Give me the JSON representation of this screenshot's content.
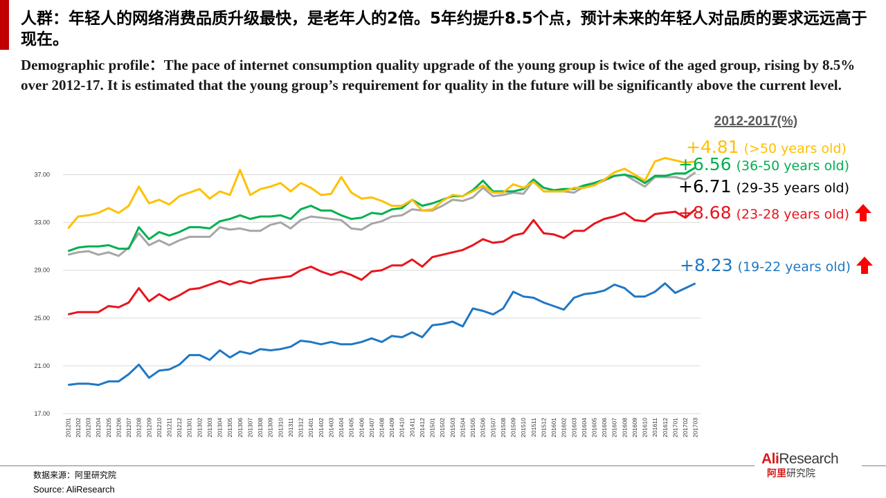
{
  "header": {
    "title_cn": "人群：年轻人的网络消费品质升级最快，是老年人的2倍。5年约提升8.5个点，预计未来的年轻人对品质的要求远远高于现在。",
    "subtitle_en": "Demographic profile：The pace of internet consumption quality upgrade of the young group is twice of the aged group, rising by 8.5% over 2012-17. It is estimated that the young group’s requirement for quality in the future will be significantly above the current level."
  },
  "footer": {
    "source_cn": "数据来源：阿里研究院",
    "source_en": "Source: AliResearch",
    "logo_en_part1": "Ali",
    "logo_en_part2": "Research",
    "logo_cn_part1": "阿里",
    "logo_cn_part2": "研究院"
  },
  "colors": {
    "accent": "#c00000",
    "grid": "#d9d9d9",
    "arrow": "#ff0000"
  },
  "chart_data": {
    "type": "line",
    "title": "",
    "xlabel": "",
    "ylabel": "",
    "ylim": [
      17,
      39
    ],
    "yticks": [
      "17.00",
      "21.00",
      "25.00",
      "29.00",
      "33.00",
      "37.00"
    ],
    "grid": true,
    "period_label": "2012-2017(%)",
    "x": [
      "201201",
      "201202",
      "201203",
      "201204",
      "201205",
      "201206",
      "201207",
      "201208",
      "201209",
      "201210",
      "201211",
      "201212",
      "201301",
      "201302",
      "201303",
      "201304",
      "201305",
      "201306",
      "201307",
      "201308",
      "201309",
      "201310",
      "201311",
      "201312",
      "201401",
      "201402",
      "201403",
      "201404",
      "201405",
      "201406",
      "201407",
      "201408",
      "201409",
      "201410",
      "201411",
      "201412",
      "201501",
      "201502",
      "201503",
      "201504",
      "201505",
      "201506",
      "201507",
      "201508",
      "201509",
      "201510",
      "201511",
      "201512",
      "201601",
      "201602",
      "201603",
      "201604",
      "201605",
      "201606",
      "201607",
      "201608",
      "201609",
      "201610",
      "201611",
      "201612",
      "201701",
      "201702",
      "201703"
    ],
    "series": [
      {
        "color": "#ffc000",
        "change": "+4.81",
        "label": "(>50 years old)",
        "arrow": false,
        "values": [
          32.5,
          33.5,
          33.6,
          33.8,
          34.2,
          33.8,
          34.4,
          36.0,
          34.6,
          34.9,
          34.5,
          35.2,
          35.5,
          35.8,
          35.0,
          35.6,
          35.3,
          37.4,
          35.3,
          35.8,
          36.0,
          36.3,
          35.6,
          36.3,
          35.9,
          35.3,
          35.4,
          36.8,
          35.5,
          35.0,
          35.1,
          34.8,
          34.4,
          34.4,
          34.9,
          34.0,
          34.1,
          34.8,
          35.3,
          35.2,
          35.6,
          36.1,
          35.5,
          35.5,
          36.2,
          35.9,
          36.4,
          35.6,
          35.6,
          35.6,
          35.9,
          35.9,
          36.1,
          36.6,
          37.2,
          37.5,
          37.0,
          36.5,
          38.1,
          38.4,
          38.2,
          38.0,
          38.1
        ]
      },
      {
        "color": "#00b050",
        "change": "+6.56",
        "label": "(36-50 years old)",
        "arrow": false,
        "values": [
          30.6,
          30.9,
          31.0,
          31.0,
          31.1,
          30.8,
          30.8,
          32.6,
          31.6,
          32.2,
          31.9,
          32.2,
          32.6,
          32.6,
          32.5,
          33.1,
          33.3,
          33.6,
          33.3,
          33.5,
          33.5,
          33.6,
          33.3,
          34.1,
          34.4,
          34.0,
          34.0,
          33.6,
          33.3,
          33.4,
          33.8,
          33.7,
          34.1,
          34.2,
          34.9,
          34.4,
          34.6,
          34.9,
          35.2,
          35.2,
          35.7,
          36.5,
          35.6,
          35.6,
          35.6,
          35.8,
          36.6,
          35.9,
          35.7,
          35.8,
          35.8,
          36.1,
          36.3,
          36.6,
          36.9,
          37.0,
          36.8,
          36.3,
          36.9,
          36.9,
          37.1,
          37.1,
          37.6
        ]
      },
      {
        "color": "#000000",
        "change": "+6.71",
        "label": "(29-35 years old)",
        "arrow": false,
        "values": [
          30.3,
          30.5,
          30.6,
          30.3,
          30.5,
          30.2,
          30.9,
          32.1,
          31.1,
          31.5,
          31.1,
          31.5,
          31.8,
          31.8,
          31.8,
          32.6,
          32.4,
          32.5,
          32.3,
          32.3,
          32.8,
          33.0,
          32.5,
          33.2,
          33.5,
          33.4,
          33.3,
          33.2,
          32.5,
          32.4,
          32.9,
          33.1,
          33.5,
          33.6,
          34.1,
          34.0,
          34.0,
          34.4,
          34.9,
          34.8,
          35.1,
          35.9,
          35.2,
          35.3,
          35.5,
          35.4,
          36.5,
          35.6,
          35.6,
          35.6,
          35.5,
          36.0,
          36.2,
          36.5,
          36.9,
          37.0,
          36.5,
          36.0,
          36.8,
          36.8,
          36.8,
          36.6,
          37.2
        ]
      },
      {
        "color": "#e8141c",
        "change": "+8.68",
        "label": "(23-28 years old)",
        "arrow": true,
        "values": [
          25.3,
          25.5,
          25.5,
          25.5,
          26.0,
          25.9,
          26.3,
          27.5,
          26.4,
          27.0,
          26.5,
          26.9,
          27.4,
          27.5,
          27.8,
          28.1,
          27.8,
          28.1,
          27.9,
          28.2,
          28.3,
          28.4,
          28.5,
          29.0,
          29.3,
          28.9,
          28.6,
          28.9,
          28.6,
          28.2,
          28.9,
          29.0,
          29.4,
          29.4,
          29.9,
          29.3,
          30.1,
          30.3,
          30.5,
          30.7,
          31.1,
          31.6,
          31.3,
          31.4,
          31.9,
          32.1,
          33.2,
          32.1,
          32.0,
          31.7,
          32.3,
          32.3,
          32.9,
          33.3,
          33.5,
          33.8,
          33.2,
          33.1,
          33.7,
          33.8,
          33.9,
          33.4,
          34.1
        ]
      },
      {
        "color": "#1f77c4",
        "change": "+8.23",
        "label": "(19-22 years old)",
        "arrow": true,
        "values": [
          19.4,
          19.5,
          19.5,
          19.4,
          19.7,
          19.7,
          20.3,
          21.1,
          20.0,
          20.6,
          20.7,
          21.1,
          21.9,
          21.9,
          21.5,
          22.3,
          21.7,
          22.2,
          22.0,
          22.4,
          22.3,
          22.4,
          22.6,
          23.1,
          23.0,
          22.8,
          23.0,
          22.8,
          22.8,
          23.0,
          23.3,
          23.0,
          23.5,
          23.4,
          23.8,
          23.4,
          24.4,
          24.5,
          24.7,
          24.3,
          25.8,
          25.6,
          25.3,
          25.8,
          27.2,
          26.8,
          26.7,
          26.3,
          26.0,
          25.7,
          26.7,
          27.0,
          27.1,
          27.3,
          27.8,
          27.5,
          26.8,
          26.8,
          27.2,
          27.9,
          27.1,
          27.5,
          27.9
        ]
      }
    ]
  }
}
